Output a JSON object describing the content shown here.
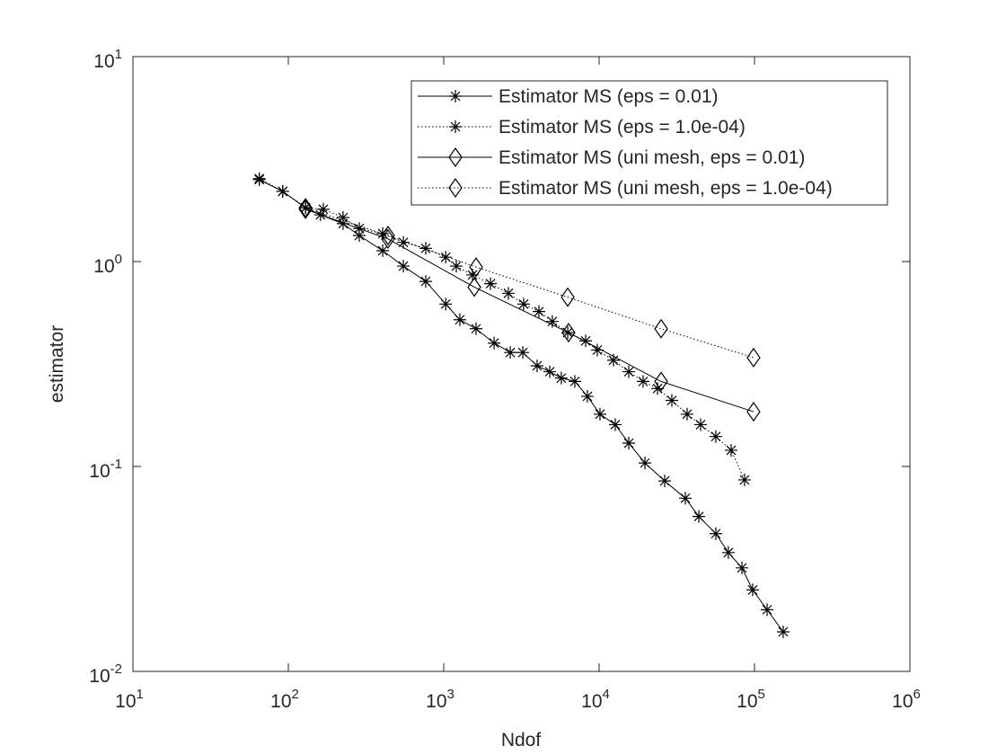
{
  "chart_data": {
    "type": "line",
    "log_x": true,
    "log_y": true,
    "xlabel": "Ndof",
    "ylabel": "estimator",
    "xlim": [
      10,
      1000000
    ],
    "ylim": [
      0.01,
      10
    ],
    "xticks": [
      {
        "value": 10,
        "label": "10",
        "exponent": "1"
      },
      {
        "value": 100,
        "label": "10",
        "exponent": "2"
      },
      {
        "value": 1000,
        "label": "10",
        "exponent": "3"
      },
      {
        "value": 10000,
        "label": "10",
        "exponent": "4"
      },
      {
        "value": 100000,
        "label": "10",
        "exponent": "5"
      },
      {
        "value": 1000000,
        "label": "10",
        "exponent": "6"
      }
    ],
    "yticks": [
      {
        "value": 0.01,
        "label": "10",
        "exponent": "-2"
      },
      {
        "value": 0.1,
        "label": "10",
        "exponent": "-1"
      },
      {
        "value": 1,
        "label": "10",
        "exponent": "0"
      },
      {
        "value": 10,
        "label": "10",
        "exponent": "1"
      }
    ],
    "legend": "northeast",
    "series": [
      {
        "name": "Estimator MS (eps = 0.01)",
        "color": "#000000",
        "line_style": "solid",
        "marker": "asterisk",
        "x": [
          65,
          92,
          129,
          161,
          225,
          286,
          405,
          550,
          766,
          1030,
          1270,
          1615,
          2110,
          2680,
          3230,
          3990,
          4810,
          5710,
          6980,
          8410,
          10130,
          12700,
          15520,
          19720,
          26430,
          35900,
          43830,
          56370,
          67880,
          83020,
          97300,
          120500,
          153000
        ],
        "values": [
          2.51,
          2.2,
          1.83,
          1.69,
          1.53,
          1.34,
          1.13,
          0.95,
          0.8,
          0.62,
          0.52,
          0.47,
          0.4,
          0.36,
          0.36,
          0.31,
          0.29,
          0.27,
          0.26,
          0.22,
          0.18,
          0.16,
          0.13,
          0.104,
          0.085,
          0.07,
          0.057,
          0.047,
          0.038,
          0.032,
          0.025,
          0.02,
          0.0156
        ]
      },
      {
        "name": "Estimator MS (eps = 1.0e-04)",
        "color": "#000000",
        "line_style": "dotted",
        "marker": "asterisk",
        "x": [
          65,
          92,
          129,
          168,
          225,
          286,
          405,
          550,
          766,
          1030,
          1205,
          1531,
          2000,
          2607,
          3268,
          4100,
          5000,
          6281,
          8190,
          9730,
          12370,
          15520,
          19190,
          23770,
          29380,
          36840,
          44980,
          56370,
          70760,
          86360
        ],
        "values": [
          2.54,
          2.2,
          1.83,
          1.8,
          1.64,
          1.45,
          1.37,
          1.24,
          1.16,
          1.05,
          0.95,
          0.86,
          0.78,
          0.7,
          0.62,
          0.57,
          0.51,
          0.45,
          0.41,
          0.37,
          0.33,
          0.29,
          0.26,
          0.24,
          0.21,
          0.18,
          0.16,
          0.14,
          0.12,
          0.086
        ]
      },
      {
        "name": "Estimator MS (uni mesh, eps = 0.01)",
        "color": "#000000",
        "line_style": "solid",
        "marker": "diamond",
        "x": [
          129,
          438,
          1573,
          6357,
          25060,
          98600
        ],
        "values": [
          1.8,
          1.29,
          0.75,
          0.45,
          0.26,
          0.185
        ]
      },
      {
        "name": "Estimator MS (uni mesh, eps = 1.0e-04)",
        "color": "#000000",
        "line_style": "dotted",
        "marker": "diamond",
        "x": [
          129,
          438,
          1615,
          6281,
          25060,
          98600
        ],
        "values": [
          1.83,
          1.34,
          0.94,
          0.67,
          0.47,
          0.34
        ]
      }
    ]
  }
}
